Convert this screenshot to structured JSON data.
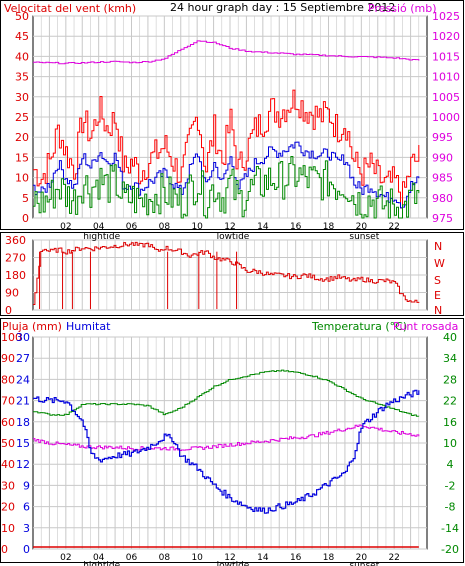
{
  "header": {
    "wind_label": "Velocitat del vent (kmh)",
    "title": "24 hour graph day : 15 Septiembre 2012",
    "pressure_label": "Pressió (mb)"
  },
  "middle": {
    "compass_letters": [
      "N",
      "W",
      "S",
      "E",
      "N"
    ]
  },
  "bottom": {
    "rain_label": "Pluja (mm)",
    "humidity_label": "Humitat",
    "temp_label": "Temperatura (°C)",
    "dew_label": "Punt rosada"
  },
  "colors": {
    "wind_gust": "#ff0000",
    "wind_avg": "#0000dd",
    "wind_min": "#008800",
    "pressure": "#dd00dd",
    "direction": "#dd0000",
    "humidity": "#0000dd",
    "temperature": "#008800",
    "dewpoint": "#dd00dd",
    "rain": "#dd0000",
    "grid": "#c8c8c8"
  },
  "chart_data": [
    {
      "type": "line",
      "x_ticks": [
        "02",
        "04",
        "06",
        "08",
        "10",
        "12",
        "14",
        "16",
        "18",
        "20",
        "22"
      ],
      "x_events": [
        "hightide",
        "lowtide",
        "sunset"
      ],
      "ylim": [
        0,
        50
      ],
      "y_ticks": [
        0,
        5,
        10,
        15,
        20,
        25,
        30,
        35,
        40,
        45,
        50
      ],
      "y2lim": [
        975,
        1025
      ],
      "y2_ticks": [
        975,
        980,
        985,
        990,
        995,
        1000,
        1005,
        1010,
        1015,
        1020,
        1025
      ],
      "series": [
        {
          "name": "Velocitat del vent (kmh)",
          "axis": "left",
          "x": [
            0,
            0.5,
            1,
            1.5,
            2,
            2.5,
            3,
            3.5,
            4,
            4.5,
            5,
            5.5,
            6,
            6.5,
            7,
            7.5,
            8,
            8.5,
            9,
            9.5,
            10,
            10.5,
            11,
            11.5,
            12,
            12.5,
            13,
            13.5,
            14,
            14.5,
            15,
            15.5,
            16,
            16.5,
            17,
            17.5,
            18,
            18.5,
            19,
            19.5,
            20,
            20.5,
            21,
            21.5,
            22,
            22.5,
            23,
            23.5
          ],
          "values": [
            12,
            10,
            14,
            22,
            16,
            12,
            25,
            20,
            27,
            22,
            25,
            12,
            14,
            11,
            14,
            16,
            18,
            14,
            10,
            19,
            26,
            12,
            22,
            14,
            24,
            12,
            17,
            22,
            24,
            27,
            26,
            28,
            30,
            27,
            26,
            25,
            26,
            22,
            24,
            14,
            11,
            13,
            10,
            8,
            9,
            5,
            13,
            15
          ]
        },
        {
          "name": "Pressió (mb)",
          "axis": "right",
          "x": [
            0,
            1,
            2,
            3,
            4,
            5,
            6,
            7,
            8,
            9,
            10,
            11,
            12,
            13,
            14,
            15,
            16,
            17,
            18,
            19,
            20,
            21,
            22,
            23,
            23.5
          ],
          "values": [
            1013.5,
            1013.4,
            1013.3,
            1013.4,
            1013.6,
            1013.7,
            1013.5,
            1013.7,
            1014.5,
            1016.8,
            1018.9,
            1018.4,
            1017.0,
            1016.3,
            1016.0,
            1015.8,
            1015.5,
            1015.4,
            1015.2,
            1015.0,
            1014.9,
            1014.8,
            1014.6,
            1014.2,
            1014.0
          ]
        }
      ]
    },
    {
      "type": "line",
      "ylim": [
        0,
        360
      ],
      "y_ticks": [
        0,
        90,
        180,
        270,
        360
      ],
      "series": [
        {
          "name": "direction",
          "x": [
            0,
            0.5,
            1,
            1.5,
            2,
            2.5,
            3,
            3.5,
            4,
            4.5,
            5,
            5.5,
            6,
            6.5,
            7,
            7.5,
            8,
            8.5,
            9,
            9.5,
            10,
            10.5,
            11,
            11.5,
            12,
            12.5,
            13,
            13.5,
            14,
            14.5,
            15,
            15.5,
            16,
            16.5,
            17,
            17.5,
            18,
            18.5,
            19,
            19.5,
            20,
            20.5,
            21,
            21.5,
            22,
            22.5,
            23,
            23.5
          ],
          "values": [
            20,
            320,
            300,
            310,
            300,
            310,
            320,
            315,
            320,
            325,
            330,
            335,
            340,
            330,
            340,
            300,
            320,
            310,
            300,
            280,
            290,
            300,
            270,
            260,
            250,
            230,
            200,
            200,
            190,
            180,
            180,
            175,
            170,
            180,
            170,
            160,
            160,
            170,
            160,
            150,
            160,
            150,
            150,
            150,
            140,
            70,
            40,
            40
          ]
        }
      ]
    },
    {
      "type": "line",
      "x_ticks": [
        "02",
        "04",
        "06",
        "08",
        "10",
        "12",
        "14",
        "16",
        "18",
        "20",
        "22"
      ],
      "x_events": [
        "hightide",
        "lowtide",
        "sunset"
      ],
      "rain_ticks": [
        0,
        10,
        20,
        30,
        40,
        50,
        60,
        70,
        80,
        90,
        100
      ],
      "humidity_ticks": [
        0,
        3,
        6,
        9,
        12,
        15,
        18,
        21,
        24,
        27,
        30
      ],
      "humidity_lim": [
        0,
        100
      ],
      "temp_ticks": [
        -20,
        -14,
        -8,
        -2,
        4,
        10,
        16,
        22,
        28,
        34,
        40
      ],
      "temp_lim": [
        -20,
        40
      ],
      "series": [
        {
          "name": "Humitat",
          "axis": "humidity",
          "x": [
            0,
            1,
            2,
            3,
            3.5,
            4,
            5,
            6,
            7,
            8,
            8.5,
            9,
            10,
            11,
            12,
            13,
            14,
            15,
            16,
            17,
            18,
            19,
            19.5,
            20,
            21,
            21.5,
            22,
            23,
            23.5
          ],
          "values": [
            71,
            70,
            70,
            60,
            45,
            42,
            44,
            45,
            48,
            53,
            52,
            44,
            38,
            30,
            24,
            20,
            18,
            20,
            22,
            26,
            31,
            36,
            44,
            58,
            65,
            68,
            70,
            73,
            74
          ]
        },
        {
          "name": "Temperatura (°C)",
          "axis": "temp",
          "x": [
            0,
            1,
            2,
            3,
            4,
            5,
            6,
            7,
            8,
            9,
            10,
            11,
            12,
            13,
            14,
            15,
            16,
            17,
            18,
            19,
            20,
            21,
            22,
            23,
            23.5
          ],
          "values": [
            19,
            18,
            18,
            21,
            21,
            21,
            21,
            20.5,
            18,
            20,
            23,
            26,
            28,
            29,
            30,
            30.5,
            30,
            29,
            27.5,
            25,
            22.5,
            21,
            19.5,
            18,
            17.5
          ]
        },
        {
          "name": "Punt rosada",
          "axis": "temp",
          "x": [
            0,
            1,
            2,
            3,
            4,
            5,
            6,
            7,
            8,
            9,
            10,
            11,
            12,
            13,
            14,
            15,
            16,
            17,
            18,
            19,
            20,
            21,
            22,
            23,
            23.5
          ],
          "values": [
            11,
            10,
            9.5,
            9,
            8.8,
            8.8,
            8.5,
            8.5,
            8.5,
            8.3,
            8.5,
            9,
            9.5,
            10,
            10.5,
            11,
            11.5,
            12,
            13,
            14,
            15,
            14,
            13,
            12.5,
            12
          ]
        },
        {
          "name": "Pluja (mm)",
          "axis": "rain",
          "x": [
            0,
            23.5
          ],
          "values": [
            0.5,
            0.5
          ]
        }
      ]
    }
  ]
}
